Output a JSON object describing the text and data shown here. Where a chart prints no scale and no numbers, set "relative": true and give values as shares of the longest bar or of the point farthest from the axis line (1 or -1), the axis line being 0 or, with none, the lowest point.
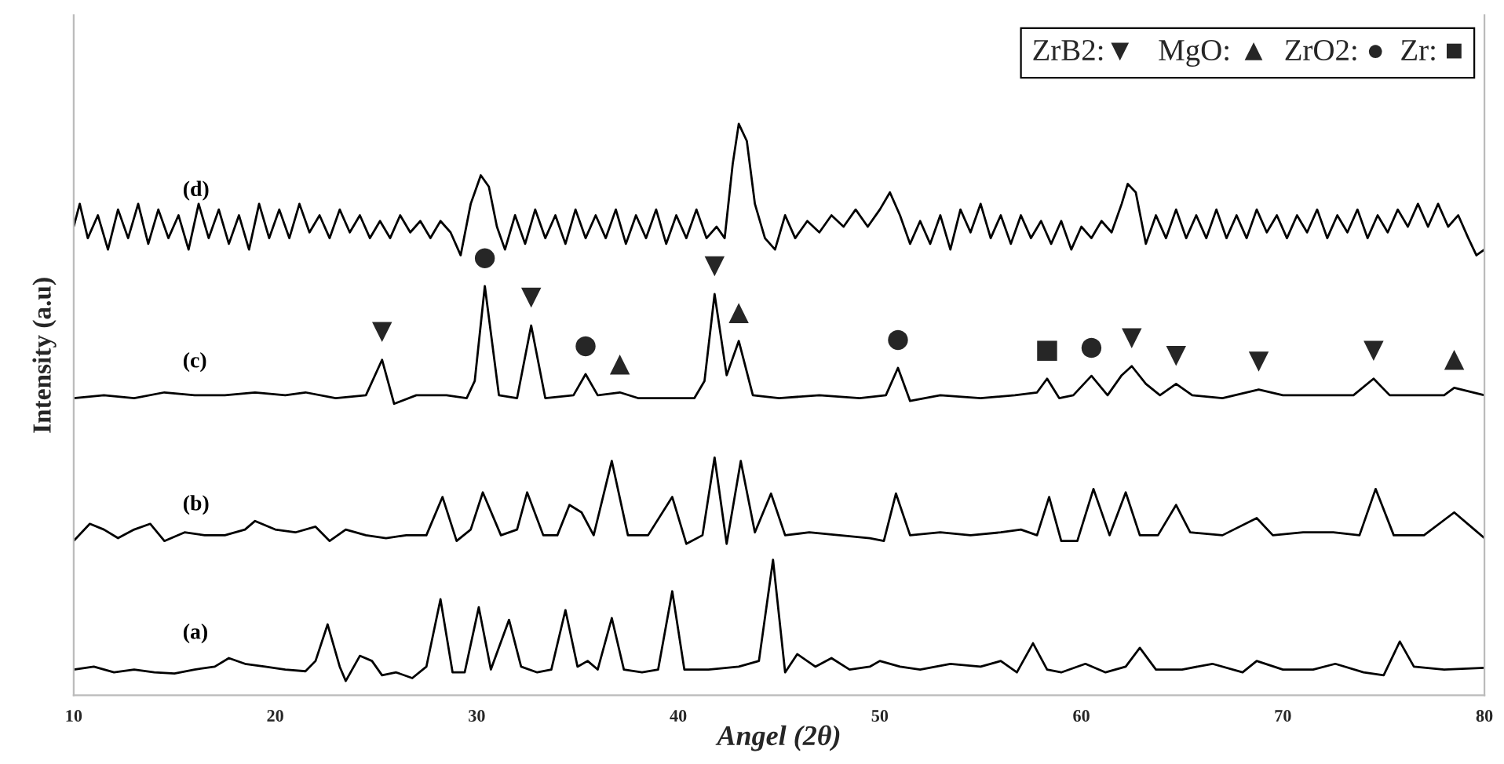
{
  "chart_data": {
    "type": "line",
    "relative": true,
    "xlabel": "Angel (2θ)",
    "ylabel": "Intensity (a.u)",
    "xlim": [
      10,
      80
    ],
    "xticks": [
      10,
      20,
      30,
      40,
      50,
      60,
      70,
      80
    ],
    "grid": false,
    "legend": false,
    "marker": "none",
    "line_style": "solid",
    "series": [
      {
        "name": "(a)",
        "color": "#000000",
        "x": [
          10,
          11,
          12,
          13,
          14,
          15,
          16,
          17,
          17.7,
          18.5,
          19.5,
          20.5,
          21.5,
          22,
          22.6,
          23.2,
          23.5,
          24.2,
          24.8,
          25.3,
          26,
          26.8,
          27.5,
          28.2,
          28.8,
          29.4,
          30.1,
          30.7,
          31.6,
          32.2,
          33,
          33.7,
          34.4,
          35.0,
          35.5,
          36.0,
          36.7,
          37.3,
          38.2,
          39.0,
          39.7,
          40.3,
          41.5,
          43,
          44.0,
          44.7,
          45.3,
          45.9,
          46.8,
          47.6,
          48.5,
          49.5,
          50,
          51,
          52,
          53.5,
          55,
          56,
          56.8,
          57.6,
          58.3,
          59,
          60.2,
          61.2,
          62.2,
          62.9,
          63.7,
          65,
          66.5,
          68,
          68.7,
          70,
          71.5,
          72.6,
          74,
          75,
          75.8,
          76.5,
          78,
          80
        ],
        "values": [
          0.045,
          0.05,
          0.04,
          0.045,
          0.04,
          0.038,
          0.045,
          0.05,
          0.065,
          0.055,
          0.05,
          0.045,
          0.042,
          0.06,
          0.124,
          0.05,
          0.025,
          0.069,
          0.06,
          0.035,
          0.04,
          0.03,
          0.05,
          0.168,
          0.04,
          0.04,
          0.154,
          0.045,
          0.132,
          0.05,
          0.04,
          0.045,
          0.149,
          0.05,
          0.06,
          0.045,
          0.135,
          0.045,
          0.04,
          0.045,
          0.182,
          0.045,
          0.045,
          0.05,
          0.06,
          0.237,
          0.04,
          0.072,
          0.05,
          0.065,
          0.045,
          0.05,
          0.06,
          0.05,
          0.045,
          0.055,
          0.05,
          0.06,
          0.04,
          0.091,
          0.045,
          0.04,
          0.055,
          0.04,
          0.05,
          0.083,
          0.045,
          0.045,
          0.055,
          0.04,
          0.06,
          0.045,
          0.045,
          0.055,
          0.04,
          0.035,
          0.094,
          0.05,
          0.045,
          0.048
        ]
      },
      {
        "name": "(b)",
        "color": "#000000",
        "x": [
          10,
          10.8,
          11.5,
          12.2,
          13,
          13.8,
          14.5,
          15.5,
          16.5,
          17.5,
          18.5,
          19,
          20,
          21,
          22,
          22.7,
          23.5,
          24.5,
          25.5,
          26.5,
          27.5,
          28.3,
          29,
          29.7,
          30.3,
          31.2,
          32,
          32.5,
          33.3,
          34,
          34.6,
          35.2,
          35.8,
          36.7,
          37.5,
          38.5,
          39.7,
          40.4,
          41.2,
          41.8,
          42.4,
          43.1,
          43.8,
          44.6,
          45.3,
          46.5,
          48,
          49.5,
          50.2,
          50.8,
          51.5,
          53,
          54.5,
          56,
          57,
          57.8,
          58.4,
          59,
          59.8,
          60.6,
          61.4,
          62.2,
          62.9,
          63.8,
          64.7,
          65.4,
          67,
          68.7,
          69.5,
          71,
          72.5,
          73.8,
          74.6,
          75.5,
          77,
          78.5,
          79.5,
          80
        ],
        "values": [
          0.27,
          0.3,
          0.29,
          0.275,
          0.29,
          0.3,
          0.27,
          0.285,
          0.28,
          0.28,
          0.29,
          0.305,
          0.29,
          0.285,
          0.295,
          0.27,
          0.29,
          0.28,
          0.275,
          0.28,
          0.28,
          0.347,
          0.27,
          0.29,
          0.355,
          0.28,
          0.29,
          0.355,
          0.28,
          0.28,
          0.333,
          0.32,
          0.28,
          0.41,
          0.28,
          0.28,
          0.347,
          0.265,
          0.28,
          0.416,
          0.265,
          0.41,
          0.285,
          0.353,
          0.28,
          0.285,
          0.28,
          0.275,
          0.27,
          0.353,
          0.28,
          0.285,
          0.28,
          0.285,
          0.29,
          0.28,
          0.347,
          0.27,
          0.27,
          0.361,
          0.28,
          0.355,
          0.28,
          0.28,
          0.333,
          0.285,
          0.28,
          0.31,
          0.28,
          0.285,
          0.285,
          0.28,
          0.361,
          0.28,
          0.28,
          0.32,
          0.29,
          0.275
        ]
      },
      {
        "name": "(c)",
        "color": "#000000",
        "x": [
          10,
          11.5,
          13,
          14.5,
          16,
          17.5,
          19,
          20.5,
          21.5,
          23,
          24.5,
          25.3,
          25.9,
          27,
          28.5,
          29.5,
          29.9,
          30.4,
          31.1,
          32.0,
          32.7,
          33.4,
          34.8,
          35.4,
          36,
          37.1,
          38,
          39.5,
          40.8,
          41.3,
          41.8,
          42.4,
          43.0,
          43.7,
          45,
          47,
          49,
          50.3,
          50.9,
          51.5,
          53,
          55,
          56.7,
          57.8,
          58.3,
          58.9,
          59.6,
          60.5,
          61.3,
          62.0,
          62.5,
          63.2,
          63.9,
          64.7,
          65.5,
          67,
          68.8,
          70,
          72,
          73.5,
          74.5,
          75.3,
          76.5,
          78,
          78.5,
          80
        ],
        "values": [
          0.52,
          0.525,
          0.52,
          0.53,
          0.525,
          0.525,
          0.53,
          0.525,
          0.53,
          0.52,
          0.525,
          0.587,
          0.51,
          0.525,
          0.525,
          0.52,
          0.55,
          0.716,
          0.525,
          0.52,
          0.647,
          0.52,
          0.525,
          0.562,
          0.525,
          0.53,
          0.52,
          0.52,
          0.52,
          0.55,
          0.702,
          0.56,
          0.62,
          0.525,
          0.52,
          0.525,
          0.52,
          0.525,
          0.573,
          0.515,
          0.525,
          0.52,
          0.525,
          0.53,
          0.554,
          0.52,
          0.525,
          0.559,
          0.525,
          0.56,
          0.576,
          0.545,
          0.525,
          0.545,
          0.525,
          0.52,
          0.535,
          0.525,
          0.525,
          0.525,
          0.554,
          0.525,
          0.525,
          0.525,
          0.538,
          0.525
        ]
      },
      {
        "name": "(d)",
        "color": "#000000",
        "x": [
          10,
          10.3,
          10.7,
          11.2,
          11.7,
          12.2,
          12.7,
          13.2,
          13.7,
          14.2,
          14.7,
          15.2,
          15.7,
          16.2,
          16.7,
          17.2,
          17.7,
          18.2,
          18.7,
          19.2,
          19.7,
          20.2,
          20.7,
          21.2,
          21.7,
          22.2,
          22.7,
          23.2,
          23.7,
          24.2,
          24.7,
          25.2,
          25.7,
          26.2,
          26.7,
          27.2,
          27.7,
          28.2,
          28.7,
          29.2,
          29.7,
          30.2,
          30.6,
          31.0,
          31.4,
          31.9,
          32.4,
          32.9,
          33.4,
          33.9,
          34.4,
          34.9,
          35.4,
          35.9,
          36.4,
          36.9,
          37.4,
          37.9,
          38.4,
          38.9,
          39.4,
          39.9,
          40.4,
          40.9,
          41.4,
          41.9,
          42.3,
          42.7,
          43.0,
          43.4,
          43.8,
          44.3,
          44.8,
          45.3,
          45.8,
          46.4,
          47,
          47.6,
          48.2,
          48.8,
          49.4,
          50,
          50.5,
          51,
          51.5,
          52,
          52.5,
          53,
          53.5,
          54,
          54.5,
          55,
          55.5,
          56,
          56.5,
          57,
          57.5,
          58,
          58.5,
          59,
          59.5,
          60,
          60.5,
          61,
          61.5,
          62,
          62.3,
          62.7,
          63.2,
          63.7,
          64.2,
          64.7,
          65.2,
          65.7,
          66.2,
          66.7,
          67.2,
          67.7,
          68.2,
          68.7,
          69.2,
          69.7,
          70.2,
          70.7,
          71.2,
          71.7,
          72.2,
          72.7,
          73.2,
          73.7,
          74.2,
          74.7,
          75.2,
          75.7,
          76.2,
          76.7,
          77.2,
          77.7,
          78.2,
          78.7,
          79.2,
          79.6,
          80
        ],
        "values": [
          0.82,
          0.86,
          0.8,
          0.84,
          0.78,
          0.85,
          0.8,
          0.86,
          0.79,
          0.85,
          0.8,
          0.84,
          0.78,
          0.86,
          0.8,
          0.85,
          0.79,
          0.84,
          0.78,
          0.86,
          0.8,
          0.85,
          0.8,
          0.86,
          0.81,
          0.84,
          0.8,
          0.85,
          0.81,
          0.84,
          0.8,
          0.83,
          0.8,
          0.84,
          0.81,
          0.83,
          0.8,
          0.83,
          0.81,
          0.77,
          0.86,
          0.91,
          0.89,
          0.82,
          0.78,
          0.84,
          0.79,
          0.85,
          0.8,
          0.84,
          0.79,
          0.85,
          0.8,
          0.84,
          0.8,
          0.85,
          0.79,
          0.84,
          0.8,
          0.85,
          0.79,
          0.84,
          0.8,
          0.85,
          0.8,
          0.82,
          0.8,
          0.93,
          1.0,
          0.97,
          0.86,
          0.8,
          0.78,
          0.84,
          0.8,
          0.83,
          0.81,
          0.84,
          0.82,
          0.85,
          0.82,
          0.85,
          0.88,
          0.84,
          0.79,
          0.83,
          0.79,
          0.84,
          0.78,
          0.85,
          0.81,
          0.86,
          0.8,
          0.84,
          0.79,
          0.84,
          0.8,
          0.83,
          0.79,
          0.83,
          0.78,
          0.82,
          0.8,
          0.83,
          0.81,
          0.86,
          0.895,
          0.88,
          0.79,
          0.84,
          0.8,
          0.85,
          0.8,
          0.84,
          0.8,
          0.85,
          0.8,
          0.84,
          0.8,
          0.85,
          0.81,
          0.84,
          0.8,
          0.84,
          0.81,
          0.85,
          0.8,
          0.84,
          0.81,
          0.85,
          0.8,
          0.84,
          0.81,
          0.85,
          0.82,
          0.86,
          0.82,
          0.86,
          0.82,
          0.84,
          0.8,
          0.77,
          0.78
        ]
      }
    ],
    "annotations": [
      "ZrB2:▼   MgO: ▲  ZrO2: ●  Zr: ■",
      {
        "text": "▼",
        "x": 25.3,
        "y": 0.587
      },
      {
        "text": "●",
        "x": 30.4,
        "y": 0.716
      },
      {
        "text": "▼",
        "x": 32.7,
        "y": 0.647
      },
      {
        "text": "●",
        "x": 35.4,
        "y": 0.562
      },
      {
        "text": "▲",
        "x": 37.1,
        "y": 0.53
      },
      {
        "text": "▼",
        "x": 41.8,
        "y": 0.702
      },
      {
        "text": "▲",
        "x": 43.0,
        "y": 0.62
      },
      {
        "text": "●",
        "x": 50.9,
        "y": 0.573
      },
      {
        "text": "■",
        "x": 58.3,
        "y": 0.554
      },
      {
        "text": "●",
        "x": 60.5,
        "y": 0.559
      },
      {
        "text": "▼",
        "x": 62.5,
        "y": 0.576
      },
      {
        "text": "▼",
        "x": 64.7,
        "y": 0.545
      },
      {
        "text": "▼",
        "x": 68.8,
        "y": 0.535
      },
      {
        "text": "▼",
        "x": 74.5,
        "y": 0.554
      },
      {
        "text": "▲",
        "x": 78.5,
        "y": 0.538
      }
    ]
  }
}
